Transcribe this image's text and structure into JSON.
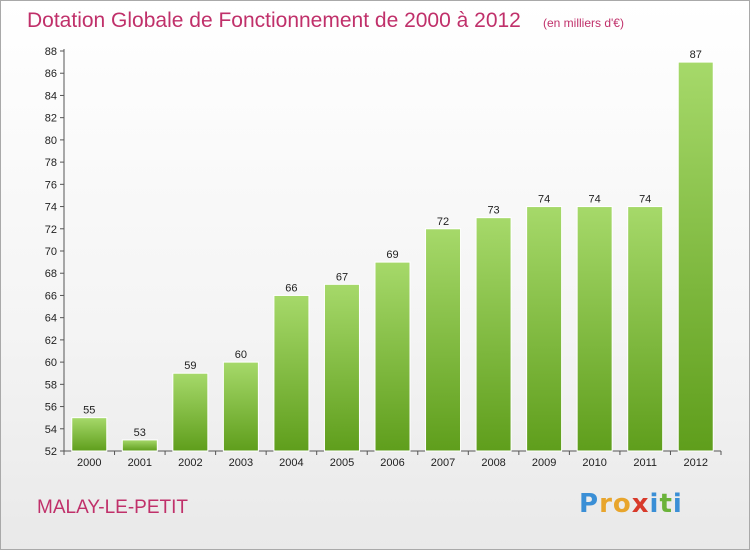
{
  "chart_data": {
    "type": "bar",
    "title": "Dotation Globale de Fonctionnement de 2000 à 2012",
    "subtitle": "(en milliers d'€)",
    "categories": [
      "2000",
      "2001",
      "2002",
      "2003",
      "2004",
      "2005",
      "2006",
      "2007",
      "2008",
      "2009",
      "2010",
      "2011",
      "2012"
    ],
    "values": [
      55,
      53,
      59,
      60,
      66,
      67,
      69,
      72,
      73,
      74,
      74,
      74,
      87
    ],
    "ylim": [
      52,
      88
    ],
    "yticks": [
      52,
      54,
      56,
      58,
      60,
      62,
      64,
      66,
      68,
      70,
      72,
      74,
      76,
      78,
      80,
      82,
      84,
      86,
      88
    ],
    "xlabel": "",
    "ylabel": "",
    "grid": false,
    "bar_color": "#7cc034",
    "bar_color_light": "#a6d96a"
  },
  "commune": "MALAY-LE-PETIT",
  "logo": {
    "letters": [
      "P",
      "r",
      "o",
      "x",
      "i",
      "t",
      "i"
    ],
    "colors": [
      "#3a8fd6",
      "#e8a52c",
      "#e8a52c",
      "#d83a2b",
      "#3a8fd6",
      "#6bb33a",
      "#3a8fd6"
    ]
  },
  "accent_color": "#c0306a"
}
